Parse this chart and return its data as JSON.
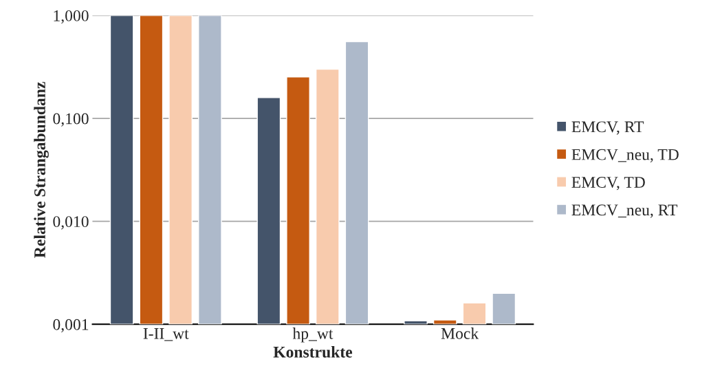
{
  "chart_data": {
    "type": "bar",
    "xlabel": "Konstrukte",
    "ylabel": "Relative Strangabundanz",
    "categories": [
      "I-II_wt",
      "hp_wt",
      "Mock"
    ],
    "series": [
      {
        "name": "EMCV, RT",
        "color": "#44546a",
        "values": [
          1,
          0.159,
          0.00108
        ]
      },
      {
        "name": "EMCV_neu, TD",
        "color": "#c55a11",
        "values": [
          1,
          0.253,
          0.0011
        ]
      },
      {
        "name": "EMCV, TD",
        "color": "#f8cbad",
        "values": [
          1,
          0.3,
          0.00161
        ]
      },
      {
        "name": "EMCV_neu, RT",
        "color": "#adb9ca",
        "values": [
          1,
          0.556,
          0.002
        ]
      }
    ],
    "log": "y",
    "ylim": [
      0.001,
      1
    ],
    "yticks": [
      {
        "value": 0.001,
        "label": "0,001"
      },
      {
        "value": 0.01,
        "label": "0,010"
      },
      {
        "value": 0.1,
        "label": "0,100"
      },
      {
        "value": 1,
        "label": "1,000"
      }
    ],
    "grid": "y",
    "legend": "right"
  }
}
